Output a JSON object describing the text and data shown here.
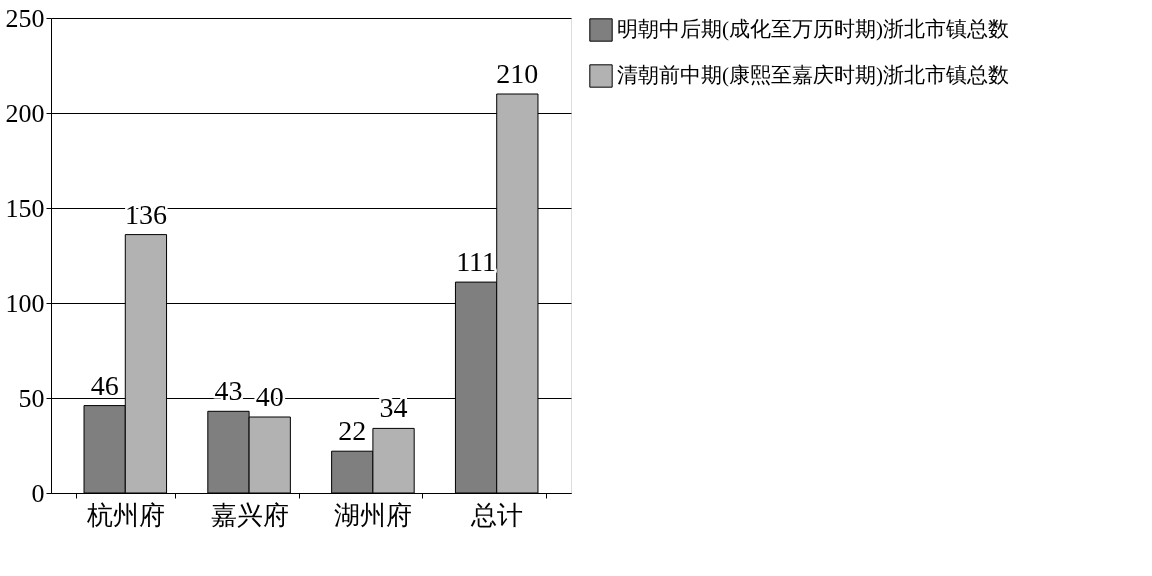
{
  "chart_data": {
    "type": "bar",
    "categories": [
      "杭州府",
      "嘉兴府",
      "湖州府",
      "总计"
    ],
    "series": [
      {
        "name": "明朝中后期(成化至万历时期)浙北市镇总数",
        "color": "#7f7f7f",
        "values": [
          46,
          43,
          22,
          111
        ]
      },
      {
        "name": "清朝前中期(康熙至嘉庆时期)浙北市镇总数",
        "color": "#b2b2b2",
        "values": [
          136,
          40,
          34,
          210
        ]
      }
    ],
    "ylim": [
      0,
      250
    ],
    "yticks": [
      0,
      50,
      100,
      150,
      200,
      250
    ],
    "grid": "y",
    "legend": "right",
    "data_labels": true
  }
}
